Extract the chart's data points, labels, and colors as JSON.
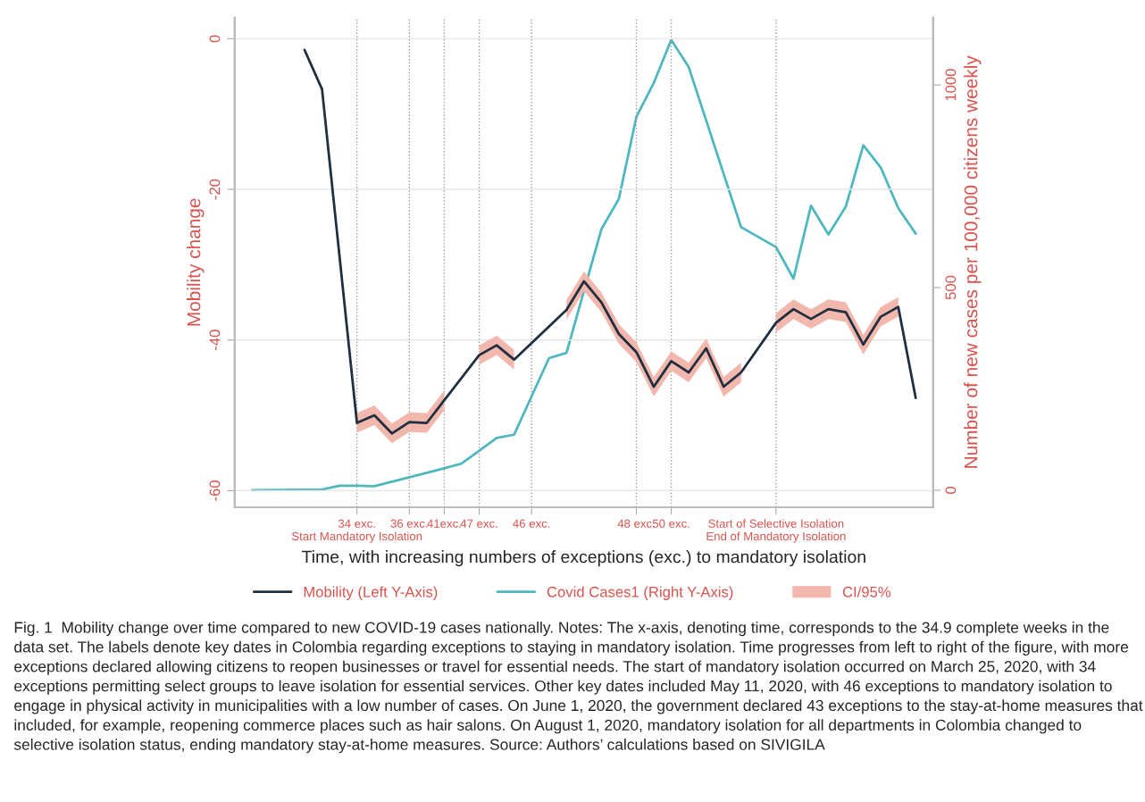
{
  "chart_data": {
    "type": "line",
    "xlabel": "Time, with increasing numbers of exceptions (exc.) to mandatory isolation",
    "ylabel": "Mobility change",
    "y2label": "Number of new cases per 100,000 citizens weekly",
    "categories": [
      null,
      null,
      null,
      null,
      null,
      null,
      "34 exc.\nStart Mandatory Isolation",
      null,
      null,
      "36 exc.",
      null,
      "41exc.",
      null,
      "47 exc.",
      null,
      null,
      "46 exc.",
      null,
      null,
      null,
      null,
      null,
      "48 exc.",
      null,
      "50 exc.",
      null,
      null,
      null,
      null,
      null,
      "Start of Selective Isolation\nEnd of Mandatory Isolation",
      null,
      null,
      null,
      null,
      null,
      null,
      null,
      null
    ],
    "ylim": [
      -62.2,
      2.8
    ],
    "yticks": [
      0,
      -20,
      -40,
      -60
    ],
    "y2lim": [
      -42,
      1166
    ],
    "y2ticks": [
      0,
      500,
      1000
    ],
    "grid": true,
    "legend": "bottom",
    "series": [
      {
        "name": "CI/95%",
        "type": "area",
        "color": "#f2b8ad",
        "values": [
          null,
          null,
          null,
          null,
          null,
          null,
          null,
          null,
          null,
          null,
          null,
          null,
          null,
          null,
          null,
          null,
          null,
          null,
          null,
          null,
          null,
          null,
          null,
          null,
          null,
          null,
          null,
          null,
          null,
          null,
          null,
          null,
          null,
          null,
          null,
          null,
          null,
          null,
          null
        ],
        "lower": [
          null,
          null,
          null,
          null,
          null,
          null,
          -52.3,
          -51.3,
          -53.7,
          -52.2,
          -52.3,
          -49.3,
          null,
          -43.3,
          -42.0,
          -43.9,
          null,
          null,
          -37.3,
          -33.5,
          -36.3,
          -40.5,
          -42.9,
          -47.5,
          -44.1,
          -45.6,
          -42.4,
          -47.5,
          -45.6,
          null,
          -39.0,
          -37.2,
          -38.5,
          -37.2,
          -37.6,
          -41.9,
          -38.2,
          -36.9,
          null
        ],
        "upper": [
          null,
          null,
          null,
          null,
          null,
          null,
          -49.7,
          -48.7,
          -51.1,
          -49.6,
          -49.7,
          -46.7,
          null,
          -40.7,
          -39.4,
          -41.3,
          null,
          null,
          -34.7,
          -30.9,
          -33.7,
          -37.9,
          -40.3,
          -44.9,
          -41.5,
          -43.0,
          -39.8,
          -44.9,
          -43.0,
          null,
          -36.4,
          -34.6,
          -35.9,
          -34.6,
          -35.0,
          -39.3,
          -35.6,
          -34.3,
          null
        ]
      },
      {
        "name": "Mobility (Left Y-Axis)",
        "color": "#1f2f3f",
        "values": [
          null,
          null,
          null,
          -1.5,
          -6.7,
          null,
          -51.0,
          -50.0,
          -52.4,
          -50.9,
          -51.0,
          -48.0,
          null,
          -42.0,
          -40.7,
          -42.6,
          null,
          null,
          -36.0,
          -32.2,
          -35.0,
          -39.2,
          -41.6,
          -46.2,
          -42.8,
          -44.3,
          -41.1,
          -46.2,
          -44.3,
          null,
          -37.7,
          -35.9,
          -37.2,
          -35.9,
          -36.3,
          -40.6,
          -36.9,
          -35.6,
          -47.7
        ]
      },
      {
        "name": "Covid Cases1 (Right Y-Axis)",
        "color": "#4fb8bf",
        "axis": "y2",
        "values": [
          0,
          null,
          null,
          null,
          2,
          11,
          11,
          10,
          null,
          32,
          null,
          54,
          66,
          null,
          129,
          137,
          null,
          326,
          339,
          null,
          644,
          719,
          921,
          1005,
          1111,
          1044,
          null,
          null,
          649,
          null,
          600,
          522,
          702,
          631,
          700,
          851,
          796,
          696,
          633
        ]
      }
    ],
    "annotations": [
      "Fig. 1  Mobility change over time compared to new COVID-19 cases nationally. Notes: The x-axis, denoting time, corresponds to the 34.9 complete weeks in the data set. The labels denote key dates in Colombia regarding exceptions to staying in mandatory isolation. Time progresses from left to right of the figure, with more exceptions declared allowing citizens to reopen businesses or travel for essential needs. The start of mandatory isolation occurred on March 25, 2020, with 34 exceptions permitting select groups to leave isolation for essential services. Other key dates included May 11, 2020, with 46 exceptions to mandatory isolation to engage in physical activity in municipalities with a low number of cases. On June 1, 2020, the government declared 43 exceptions to the stay-at-home measures that included, for example, reopening commerce places such as hair salons. On August 1, 2020, mandatory isolation for all departments in Colombia changed to selective isolation status, ending mandatory stay-at-home measures. Source: Authors’ calculations based on SIVIGILA"
    ]
  }
}
